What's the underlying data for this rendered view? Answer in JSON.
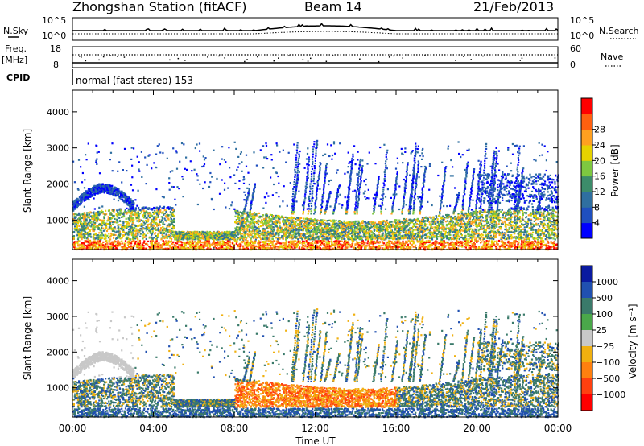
{
  "header": {
    "station": "Zhongshan Station (fitACF)",
    "beam": "Beam 14",
    "date": "21/Feb/2013"
  },
  "strip": {
    "nsky_label": "N.Sky",
    "nsearch_label": "N.Search",
    "sky_ticks": [
      "10^5",
      "10^0"
    ],
    "search_ticks": [
      "10^5",
      "10^0"
    ],
    "freq_label_1": "Freq.",
    "freq_label_2": "[MHz]",
    "freq_ticks": [
      "18",
      "8"
    ],
    "nave_label": "Nave",
    "nave_ticks": [
      "60",
      "0"
    ],
    "cpid_label": "CPID",
    "cpid_text": "normal (fast stereo) 153"
  },
  "chart_data": [
    {
      "type": "heatmap",
      "name": "power",
      "ylabel": "Slant Range [km]",
      "xlabel": "Time UT",
      "xticks": [
        "00:00",
        "04:00",
        "08:00",
        "12:00",
        "16:00",
        "20:00",
        "00:00"
      ],
      "yticks": [
        1000,
        2000,
        3000,
        4000
      ],
      "ylim": [
        180,
        4600
      ],
      "xlim_hours": [
        0,
        24
      ],
      "colorbar": {
        "label": "Power [dB]",
        "ticks": [
          "4",
          "8",
          "12",
          "16",
          "20",
          "24",
          "28"
        ],
        "colors": [
          "#0000ff",
          "#1f4fbf",
          "#2f6fa0",
          "#3c8c6a",
          "#7ec840",
          "#e6d200",
          "#ffa020",
          "#ff6010",
          "#ff0000"
        ]
      }
    },
    {
      "type": "heatmap",
      "name": "velocity",
      "ylabel": "Slant Range [km]",
      "xlabel": "Time UT",
      "xticks": [
        "00:00",
        "04:00",
        "08:00",
        "12:00",
        "16:00",
        "20:00",
        "00:00"
      ],
      "yticks": [
        1000,
        2000,
        3000,
        4000
      ],
      "ylim": [
        180,
        4600
      ],
      "xlim_hours": [
        0,
        24
      ],
      "colorbar": {
        "label": "Velocity [m s⁻¹]",
        "ticks": [
          "1000",
          "500",
          "100",
          "25",
          "−25",
          "−100",
          "−500",
          "−1000"
        ],
        "colors": [
          "#0a1aa0",
          "#2050b0",
          "#3a7a6a",
          "#4aa84a",
          "#c8c8c8",
          "#f0b010",
          "#ff8010",
          "#ff4010",
          "#ff0000"
        ]
      }
    }
  ]
}
